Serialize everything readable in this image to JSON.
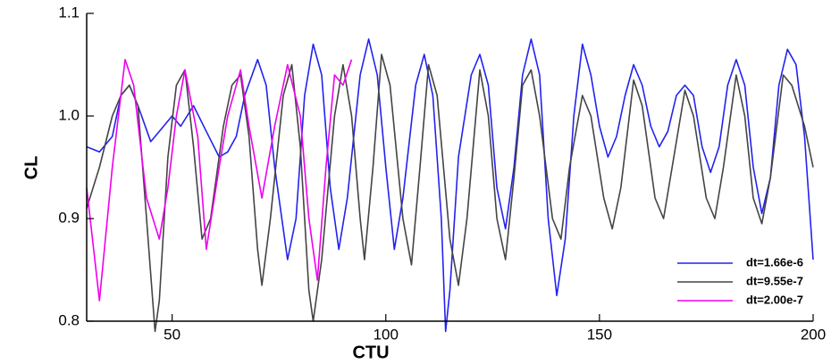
{
  "chart_data": {
    "type": "line",
    "x_label": "CTU",
    "y_label": "CL",
    "xlim": [
      30,
      200
    ],
    "ylim": [
      0.8,
      1.1
    ],
    "xticks": [
      50,
      100,
      150,
      200
    ],
    "yticks": [
      0.8,
      0.9,
      {
        "value": 1,
        "label": "1.0"
      },
      1.1
    ],
    "legend": "lower right",
    "series": [
      {
        "name": "dt=1.66e-6",
        "color": "#2222ee",
        "x": [
          30,
          33,
          36,
          38,
          40,
          42,
          45,
          48,
          50,
          52,
          55,
          58,
          61,
          63,
          65,
          67,
          70,
          72,
          74,
          77,
          79,
          81,
          83,
          85,
          87,
          89,
          91,
          94,
          96,
          98,
          100,
          102,
          104,
          107,
          109,
          111,
          113,
          114,
          115,
          117,
          120,
          122,
          124,
          126,
          128,
          130,
          132,
          134,
          136,
          138,
          140,
          142,
          144,
          146,
          148,
          150,
          152,
          154,
          156,
          158,
          160,
          162,
          164,
          166,
          168,
          170,
          172,
          174,
          176,
          178,
          180,
          182,
          184,
          186,
          188,
          190,
          192,
          194,
          196,
          198,
          200
        ],
        "values": [
          0.97,
          0.965,
          0.98,
          1.02,
          1.03,
          1.01,
          0.975,
          0.99,
          1.0,
          0.99,
          1.01,
          0.985,
          0.96,
          0.965,
          0.98,
          1.02,
          1.055,
          1.03,
          0.95,
          0.86,
          0.9,
          1.02,
          1.07,
          1.04,
          0.93,
          0.87,
          0.92,
          1.04,
          1.075,
          1.04,
          0.95,
          0.87,
          0.92,
          1.03,
          1.06,
          1.02,
          0.9,
          0.79,
          0.83,
          0.96,
          1.04,
          1.06,
          1.03,
          0.93,
          0.89,
          0.95,
          1.04,
          1.075,
          1.04,
          0.9,
          0.825,
          0.88,
          1.0,
          1.07,
          1.04,
          0.99,
          0.96,
          0.98,
          1.02,
          1.05,
          1.03,
          0.99,
          0.97,
          0.985,
          1.02,
          1.03,
          1.02,
          0.97,
          0.945,
          0.97,
          1.03,
          1.055,
          1.03,
          0.95,
          0.905,
          0.94,
          1.03,
          1.065,
          1.05,
          0.98,
          0.86
        ]
      },
      {
        "name": "dt=9.55e-7",
        "color": "#444444",
        "x": [
          30,
          33,
          36,
          38,
          40,
          42,
          44,
          46,
          47,
          49,
          51,
          53,
          55,
          57,
          59,
          62,
          64,
          66,
          68,
          70,
          71,
          73,
          76,
          78,
          80,
          82,
          83,
          85,
          88,
          90,
          92,
          94,
          95,
          97,
          99,
          101,
          104,
          106,
          108,
          110,
          112,
          115,
          117,
          119,
          122,
          124,
          126,
          128,
          130,
          132,
          134,
          136,
          139,
          141,
          143,
          146,
          148,
          151,
          153,
          155,
          158,
          160,
          163,
          165,
          167,
          170,
          172,
          175,
          177,
          179,
          182,
          184,
          186,
          188,
          190,
          193,
          195,
          198,
          200
        ],
        "values": [
          0.91,
          0.95,
          1.0,
          1.02,
          1.03,
          1.01,
          0.9,
          0.79,
          0.82,
          0.96,
          1.03,
          1.045,
          0.97,
          0.88,
          0.9,
          0.99,
          1.03,
          1.04,
          0.98,
          0.87,
          0.835,
          0.9,
          1.02,
          1.05,
          0.97,
          0.83,
          0.8,
          0.86,
          1.0,
          1.05,
          1.0,
          0.9,
          0.86,
          0.95,
          1.06,
          1.03,
          0.9,
          0.855,
          0.95,
          1.05,
          1.02,
          0.88,
          0.835,
          0.9,
          1.045,
          1.0,
          0.9,
          0.86,
          0.94,
          1.03,
          1.045,
          1.0,
          0.9,
          0.88,
          0.95,
          1.02,
          1.0,
          0.92,
          0.89,
          0.93,
          1.035,
          1.01,
          0.92,
          0.9,
          0.95,
          1.025,
          1.0,
          0.92,
          0.9,
          0.95,
          1.04,
          1.0,
          0.92,
          0.895,
          0.94,
          1.04,
          1.03,
          0.99,
          0.95
        ]
      },
      {
        "name": "dt=2.00e-7",
        "color": "#ee00ee",
        "x": [
          30,
          33,
          36,
          39,
          41,
          44,
          47,
          49,
          51,
          53,
          56,
          58,
          61,
          63,
          66,
          68,
          71,
          74,
          77,
          80,
          82,
          84,
          86,
          88,
          90,
          92
        ],
        "values": [
          0.93,
          0.82,
          0.95,
          1.055,
          1.03,
          0.92,
          0.88,
          0.93,
          1.0,
          1.045,
          0.98,
          0.87,
          0.95,
          1.0,
          1.045,
          0.99,
          0.92,
          0.99,
          1.05,
          1.0,
          0.9,
          0.84,
          0.95,
          1.04,
          1.03,
          1.055
        ]
      }
    ]
  }
}
